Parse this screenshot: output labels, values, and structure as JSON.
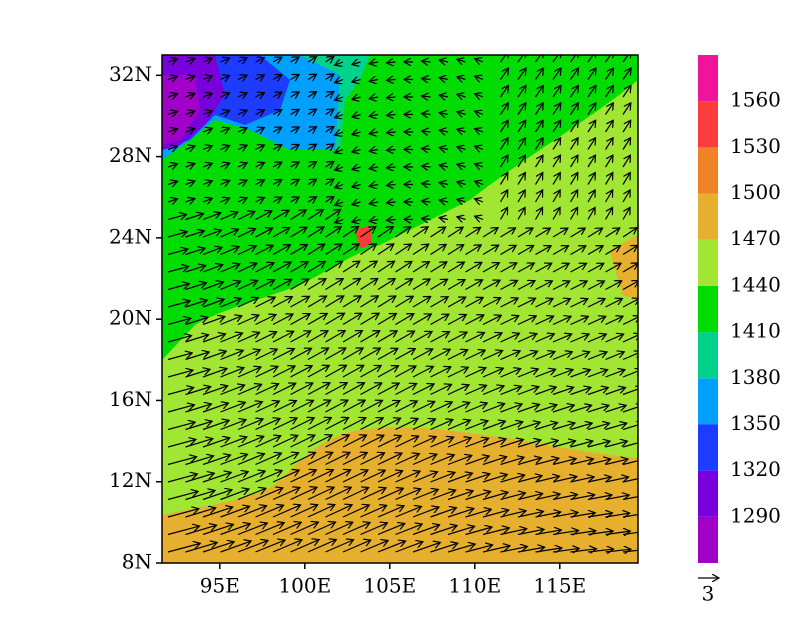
{
  "map": {
    "xticks": [
      {
        "value": 95,
        "label": "95E"
      },
      {
        "value": 100,
        "label": "100E"
      },
      {
        "value": 105,
        "label": "105E"
      },
      {
        "value": 110,
        "label": "110E"
      },
      {
        "value": 115,
        "label": "115E"
      }
    ],
    "yticks": [
      {
        "value": 8,
        "label": "8N"
      },
      {
        "value": 12,
        "label": "12N"
      },
      {
        "value": 16,
        "label": "16N"
      },
      {
        "value": 20,
        "label": "20N"
      },
      {
        "value": 24,
        "label": "24N"
      },
      {
        "value": 28,
        "label": "28N"
      },
      {
        "value": 32,
        "label": "32N"
      }
    ],
    "xlim": [
      91.6,
      119.6
    ],
    "ylim": [
      8,
      33
    ],
    "colorbar": {
      "levels": [
        1290,
        1320,
        1350,
        1380,
        1410,
        1440,
        1470,
        1500,
        1530,
        1560
      ],
      "colors": [
        "#a000c8",
        "#7800dc",
        "#1e3cff",
        "#00a0ff",
        "#00d28c",
        "#00dc00",
        "#a0e632",
        "#e6af2d",
        "#f08228",
        "#fa3c3c",
        "#f0149a"
      ]
    },
    "reference_vector": "3"
  }
}
